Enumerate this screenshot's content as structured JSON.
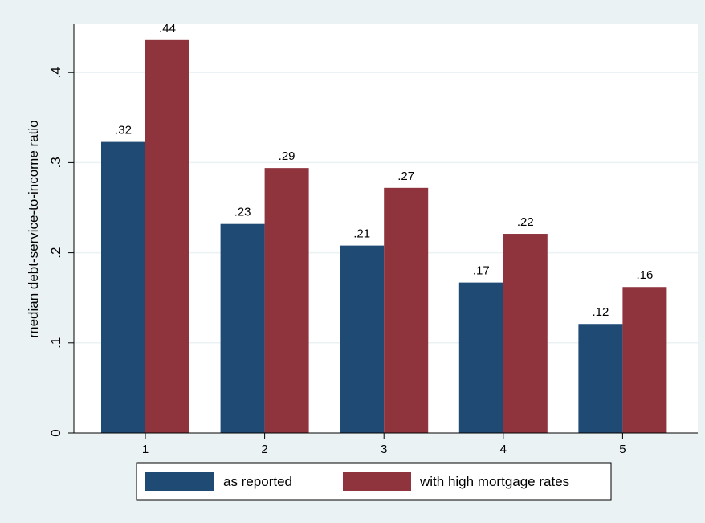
{
  "chart_data": {
    "type": "bar",
    "title": "",
    "xlabel": "",
    "ylabel": "median debt-service-to-income ratio",
    "categories": [
      "1",
      "2",
      "3",
      "4",
      "5"
    ],
    "series": [
      {
        "name": "as reported",
        "color": "#1f4a74",
        "values": [
          0.323,
          0.232,
          0.208,
          0.167,
          0.121
        ],
        "labels": [
          ".32",
          ".23",
          ".21",
          ".17",
          ".12"
        ]
      },
      {
        "name": "with high mortgage rates",
        "color": "#8f333c",
        "values": [
          0.436,
          0.294,
          0.272,
          0.221,
          0.162
        ],
        "labels": [
          ".44",
          ".29",
          ".27",
          ".22",
          ".16"
        ]
      }
    ],
    "yticks": [
      0,
      0.1,
      0.2,
      0.3,
      0.4
    ],
    "ytick_labels": [
      "0",
      ".1",
      ".2",
      ".3",
      ".4"
    ],
    "ylim": [
      0,
      0.45
    ],
    "grid": true,
    "legend_position": "bottom"
  }
}
